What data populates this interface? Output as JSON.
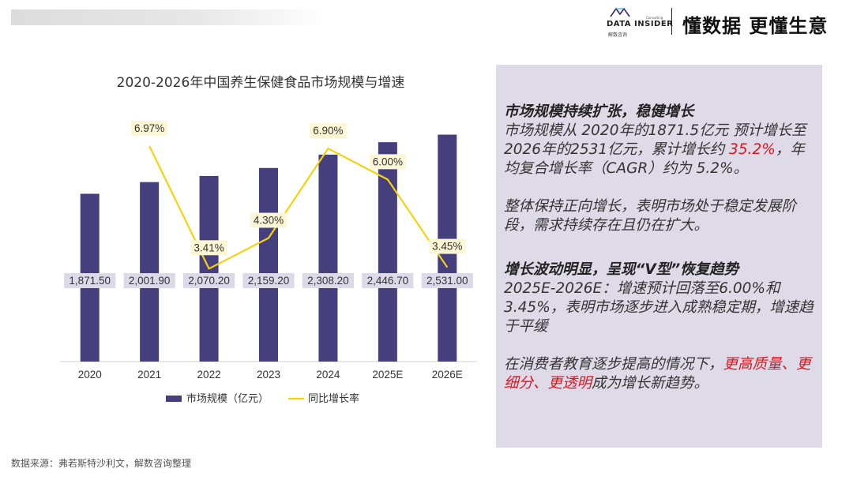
{
  "header": {
    "brand_name": "DATA INSIDER",
    "brand_sub": "Consulting",
    "brand_cn": "解数咨询",
    "slogan": "懂数据 更懂生意"
  },
  "chart_data": {
    "type": "bar",
    "title": "2020-2026年中国养生保健食品市场规模与增速",
    "categories": [
      "2020",
      "2021",
      "2022",
      "2023",
      "2024",
      "2025E",
      "2026E"
    ],
    "series": [
      {
        "name": "市场规模（亿元）",
        "type": "bar",
        "color": "#463f7e",
        "values": [
          1871.5,
          2001.9,
          2070.2,
          2159.2,
          2308.2,
          2446.7,
          2531.0
        ],
        "labels": [
          "1,871.50",
          "2,001.90",
          "2,070.20",
          "2,159.20",
          "2,308.20",
          "2,446.70",
          "2,531.00"
        ]
      },
      {
        "name": "同比增长率",
        "type": "line",
        "color": "#f5d20f",
        "values": [
          null,
          6.97,
          3.41,
          4.3,
          6.9,
          6.0,
          3.45
        ],
        "labels": [
          null,
          "6.97%",
          "3.41%",
          "4.30%",
          "6.90%",
          "6.00%",
          "3.45%"
        ]
      }
    ],
    "legend_position": "bottom",
    "grid": false
  },
  "panel": {
    "p1_head": "市场规模持续扩张，稳健增长",
    "p1_a": "市场规模从 2020年的1871.5亿元 预计增长至 2026年的2531亿元，累计增长约 ",
    "p1_hl": "35.2%",
    "p1_b": "，年均复合增长率（CAGR）约为 5.2%。",
    "p2": "整体保持正向增长，表明市场处于稳定发展阶段，需求持续存在且仍在扩大。",
    "p3_head": "增长波动明显，呈现“V型”恢复趋势",
    "p3_body": "2025E-2026E：增速预计回落至6.00%和3.45%，表明市场逐步进入成熟稳定期，增速趋于平缓",
    "p4_a": "在消费者教育逐步提高的情况下，",
    "p4_hl": "更高质量、更细分、更透明",
    "p4_b": "成为增长新趋势。"
  },
  "source": "数据来源：弗若斯特沙利文，解数咨询整理"
}
